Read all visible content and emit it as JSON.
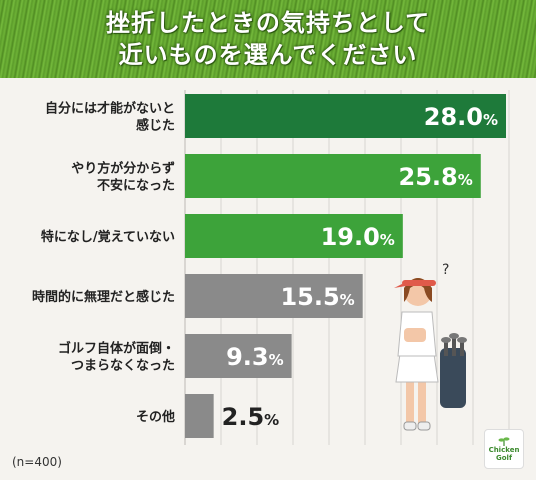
{
  "header": {
    "title_line1": "挫折したときの気持ちとして",
    "title_line2": "近いものを選んでください"
  },
  "chart_data": {
    "type": "bar",
    "orientation": "horizontal",
    "categories": [
      [
        "自分には才能がないと",
        "感じた"
      ],
      [
        "やり方が分からず",
        "不安になった"
      ],
      [
        "特になし/覚えていない"
      ],
      [
        "時間的に無理だと感じた"
      ],
      [
        "ゴルフ自体が面倒・",
        "つまらなくなった"
      ],
      [
        "その他"
      ]
    ],
    "values": [
      28.0,
      25.8,
      19.0,
      15.5,
      9.3,
      2.5
    ],
    "value_labels": [
      {
        "num": "28.0",
        "unit": "%"
      },
      {
        "num": "25.8",
        "unit": "%"
      },
      {
        "num": "19.0",
        "unit": "%"
      },
      {
        "num": "15.5",
        "unit": "%"
      },
      {
        "num": "9.3",
        "unit": "%"
      },
      {
        "num": "2.5",
        "unit": "%"
      }
    ],
    "bar_colors": [
      "#1e7a3a",
      "#3da33a",
      "#3da33a",
      "#8a8a8a",
      "#8a8a8a",
      "#8a8a8a"
    ],
    "xlim": [
      0,
      28.0
    ],
    "grid": true
  },
  "note": "(n=400)",
  "logo": {
    "line1": "Chicken",
    "line2": "Golf"
  }
}
